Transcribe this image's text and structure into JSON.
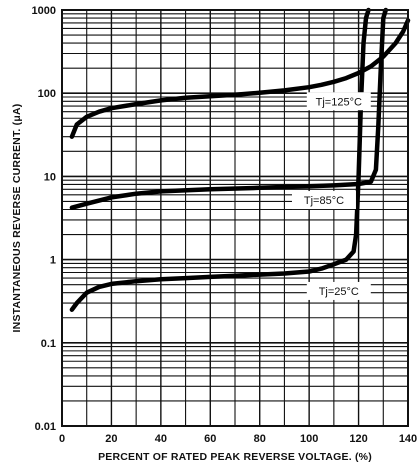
{
  "chart_data": {
    "type": "line",
    "title": "",
    "xlabel": "PERCENT OF RATED PEAK REVERSE VOLTAGE. (%)",
    "ylabel": "INSTANTANEOUS REVERSE CURRENT. (μA)",
    "xlim": [
      0,
      140
    ],
    "ylim": [
      0.01,
      1000
    ],
    "yscale": "log",
    "grid": true,
    "x_ticks": [
      "0",
      "20",
      "40",
      "60",
      "80",
      "100",
      "120",
      "140"
    ],
    "y_ticks": [
      "0.01",
      "0.1",
      "1",
      "10",
      "100",
      "1000"
    ],
    "series": [
      {
        "name": "Tj=125°C",
        "x": [
          4,
          6,
          10,
          15,
          20,
          30,
          40,
          50,
          60,
          70,
          80,
          90,
          100,
          105,
          110,
          115,
          120,
          125,
          130,
          135,
          138,
          140
        ],
        "y": [
          30,
          42,
          52,
          60,
          66,
          74,
          82,
          88,
          92,
          96,
          101,
          108,
          118,
          126,
          137,
          152,
          175,
          210,
          275,
          400,
          550,
          750
        ]
      },
      {
        "name": "Tj=85°C",
        "x": [
          4,
          10,
          20,
          30,
          40,
          60,
          80,
          100,
          110,
          120,
          125,
          127,
          128,
          129,
          130,
          131
        ],
        "y": [
          4.2,
          4.7,
          5.6,
          6.2,
          6.6,
          7.0,
          7.3,
          7.6,
          7.8,
          8.1,
          8.6,
          12,
          40,
          200,
          800,
          1000
        ]
      },
      {
        "name": "Tj=25°C",
        "x": [
          4,
          6,
          10,
          15,
          20,
          30,
          40,
          50,
          60,
          70,
          80,
          90,
          100,
          105,
          110,
          115,
          118,
          119,
          120,
          121,
          122,
          123,
          124
        ],
        "y": [
          0.25,
          0.3,
          0.4,
          0.47,
          0.51,
          0.55,
          0.58,
          0.6,
          0.62,
          0.64,
          0.66,
          0.68,
          0.72,
          0.78,
          0.88,
          1.0,
          1.25,
          2.0,
          10,
          80,
          400,
          800,
          1000
        ]
      }
    ],
    "annotations": [
      {
        "text": "Tj=125°C",
        "series": 0
      },
      {
        "text": "Tj=85°C",
        "series": 1
      },
      {
        "text": "Tj=25°C",
        "series": 2
      }
    ]
  }
}
